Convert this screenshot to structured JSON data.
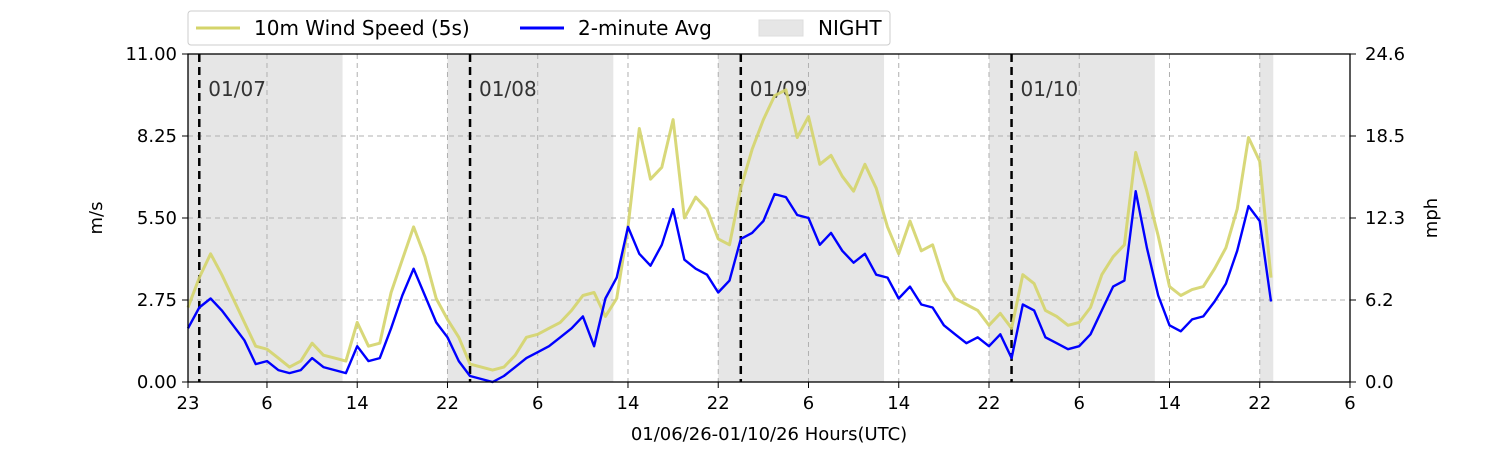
{
  "chart_data": {
    "type": "line",
    "xlabel": "01/06/26-01/10/26  Hours(UTC)",
    "ylabel_left": "m/s",
    "ylabel_right": "mph",
    "x_range_hours": [
      0,
      103
    ],
    "ylim": [
      0,
      11
    ],
    "x_ticks": [
      {
        "hour": 0,
        "label": "23"
      },
      {
        "hour": 7,
        "label": "6"
      },
      {
        "hour": 15,
        "label": "14"
      },
      {
        "hour": 23,
        "label": "22"
      },
      {
        "hour": 31,
        "label": "6"
      },
      {
        "hour": 39,
        "label": "14"
      },
      {
        "hour": 47,
        "label": "22"
      },
      {
        "hour": 55,
        "label": "6"
      },
      {
        "hour": 63,
        "label": "14"
      },
      {
        "hour": 71,
        "label": "22"
      },
      {
        "hour": 79,
        "label": "6"
      },
      {
        "hour": 87,
        "label": "14"
      },
      {
        "hour": 95,
        "label": "22"
      },
      {
        "hour": 103,
        "label": "6"
      }
    ],
    "y_ticks_left": [
      "0.00",
      "2.75",
      "5.50",
      "8.25",
      "11.00"
    ],
    "y_ticks_right": [
      "0.0",
      "6.2",
      "12.3",
      "18.5",
      "24.6"
    ],
    "y_tick_values": [
      0,
      2.75,
      5.5,
      8.25,
      11
    ],
    "day_markers": [
      {
        "hour": 1,
        "label": "01/07"
      },
      {
        "hour": 25,
        "label": "01/08"
      },
      {
        "hour": 49,
        "label": "01/09"
      },
      {
        "hour": 73,
        "label": "01/10"
      }
    ],
    "night_periods": [
      [
        0,
        13.7
      ],
      [
        23,
        37.7
      ],
      [
        47,
        61.7
      ],
      [
        71,
        85.7
      ],
      [
        95,
        96.2
      ]
    ],
    "legend": {
      "placement": "top-center",
      "entries": [
        {
          "label": "10m Wind Speed (5s)",
          "color": "#d4d46a"
        },
        {
          "label": "2-minute Avg",
          "color": "#0000ff"
        },
        {
          "label": "NIGHT",
          "color": "#e6e6e6"
        }
      ]
    },
    "grid": true,
    "series": [
      {
        "name": "10m Wind Speed (5s)",
        "color": "#d4d46a",
        "x": [
          0,
          1,
          2,
          3,
          4,
          5,
          6,
          7,
          8,
          9,
          10,
          11,
          12,
          13,
          14,
          15,
          16,
          17,
          18,
          19,
          20,
          21,
          22,
          23,
          24,
          25,
          26,
          27,
          28,
          29,
          30,
          31,
          32,
          33,
          34,
          35,
          36,
          37,
          38,
          39,
          40,
          41,
          42,
          43,
          44,
          45,
          46,
          47,
          48,
          49,
          50,
          51,
          52,
          53,
          54,
          55,
          56,
          57,
          58,
          59,
          60,
          61,
          62,
          63,
          64,
          65,
          66,
          67,
          68,
          69,
          70,
          71,
          72,
          73,
          74,
          75,
          76,
          77,
          78,
          79,
          80,
          81,
          82,
          83,
          84,
          85,
          86,
          87,
          88,
          89,
          90,
          91,
          92,
          93,
          94,
          95,
          96
        ],
        "y": [
          2.5,
          3.5,
          4.3,
          3.6,
          2.8,
          2.0,
          1.2,
          1.1,
          0.8,
          0.5,
          0.7,
          1.3,
          0.9,
          0.8,
          0.7,
          2.0,
          1.2,
          1.3,
          3.0,
          4.1,
          5.2,
          4.2,
          2.8,
          2.1,
          1.5,
          0.6,
          0.5,
          0.4,
          0.5,
          0.9,
          1.5,
          1.6,
          1.8,
          2.0,
          2.4,
          2.9,
          3.0,
          2.2,
          2.8,
          5.2,
          8.5,
          6.8,
          7.2,
          8.8,
          5.5,
          6.2,
          5.8,
          4.8,
          4.6,
          6.5,
          7.8,
          8.8,
          9.6,
          9.8,
          8.2,
          8.9,
          7.3,
          7.6,
          6.9,
          6.4,
          7.3,
          6.5,
          5.2,
          4.3,
          5.4,
          4.4,
          4.6,
          3.4,
          2.8,
          2.6,
          2.4,
          1.9,
          2.3,
          1.8,
          3.6,
          3.3,
          2.4,
          2.2,
          1.9,
          2.0,
          2.5,
          3.6,
          4.2,
          4.6,
          7.7,
          6.4,
          4.9,
          3.2,
          2.9,
          3.1,
          3.2,
          3.8,
          4.5,
          5.8,
          8.2,
          7.4,
          3.5
        ]
      },
      {
        "name": "2-minute Avg",
        "color": "#0000ff",
        "x": [
          0,
          1,
          2,
          3,
          4,
          5,
          6,
          7,
          8,
          9,
          10,
          11,
          12,
          13,
          14,
          15,
          16,
          17,
          18,
          19,
          20,
          21,
          22,
          23,
          24,
          25,
          26,
          27,
          28,
          29,
          30,
          31,
          32,
          33,
          34,
          35,
          36,
          37,
          38,
          39,
          40,
          41,
          42,
          43,
          44,
          45,
          46,
          47,
          48,
          49,
          50,
          51,
          52,
          53,
          54,
          55,
          56,
          57,
          58,
          59,
          60,
          61,
          62,
          63,
          64,
          65,
          66,
          67,
          68,
          69,
          70,
          71,
          72,
          73,
          74,
          75,
          76,
          77,
          78,
          79,
          80,
          81,
          82,
          83,
          84,
          85,
          86,
          87,
          88,
          89,
          90,
          91,
          92,
          93,
          94,
          95,
          96
        ],
        "y": [
          1.8,
          2.5,
          2.8,
          2.4,
          1.9,
          1.4,
          0.6,
          0.7,
          0.4,
          0.3,
          0.4,
          0.8,
          0.5,
          0.4,
          0.3,
          1.2,
          0.7,
          0.8,
          1.8,
          2.9,
          3.8,
          2.9,
          2.0,
          1.5,
          0.7,
          0.2,
          0.1,
          0.0,
          0.2,
          0.5,
          0.8,
          1.0,
          1.2,
          1.5,
          1.8,
          2.2,
          1.2,
          2.8,
          3.5,
          5.2,
          4.3,
          3.9,
          4.6,
          5.8,
          4.1,
          3.8,
          3.6,
          3.0,
          3.4,
          4.8,
          5.0,
          5.4,
          6.3,
          6.2,
          5.6,
          5.5,
          4.6,
          5.0,
          4.4,
          4.0,
          4.3,
          3.6,
          3.5,
          2.8,
          3.2,
          2.6,
          2.5,
          1.9,
          1.6,
          1.3,
          1.5,
          1.2,
          1.6,
          0.8,
          2.6,
          2.4,
          1.5,
          1.3,
          1.1,
          1.2,
          1.6,
          2.4,
          3.2,
          3.4,
          6.4,
          4.5,
          2.9,
          1.9,
          1.7,
          2.1,
          2.2,
          2.7,
          3.3,
          4.4,
          5.9,
          5.4,
          2.7
        ]
      }
    ]
  }
}
